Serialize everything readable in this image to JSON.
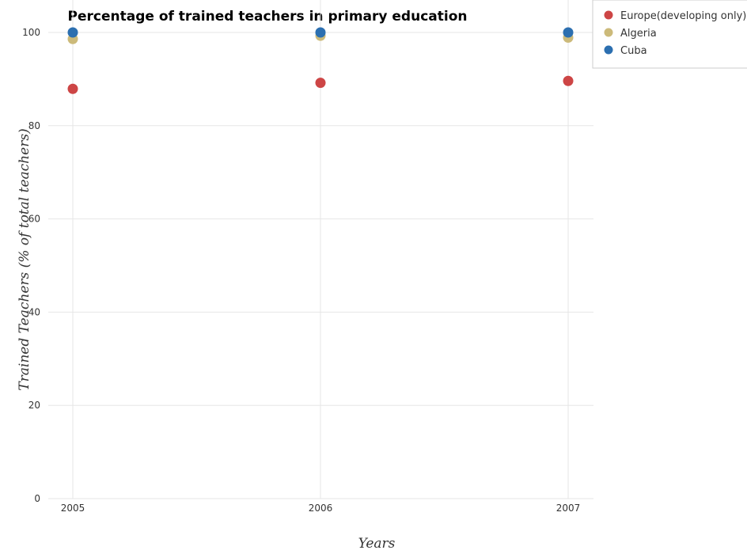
{
  "chart_data": {
    "type": "scatter",
    "title": "Percentage of trained teachers in primary education",
    "xlabel": "Years",
    "ylabel": "Trained Teachers (% of total teachers)",
    "categories": [
      "2005",
      "2006",
      "2007"
    ],
    "ylim": [
      0,
      100
    ],
    "yticks": [
      "0",
      "20",
      "40",
      "60",
      "80",
      "100"
    ],
    "grid": true,
    "legend_position": "top-right",
    "series": [
      {
        "name": "Europe(developing only)",
        "color": "#cd4545",
        "values": [
          87.9,
          89.2,
          89.6
        ]
      },
      {
        "name": "Algeria",
        "color": "#ccba7a",
        "values": [
          98.6,
          99.3,
          98.9
        ]
      },
      {
        "name": "Cuba",
        "color": "#2c6fb0",
        "values": [
          100,
          100,
          100
        ]
      }
    ]
  }
}
